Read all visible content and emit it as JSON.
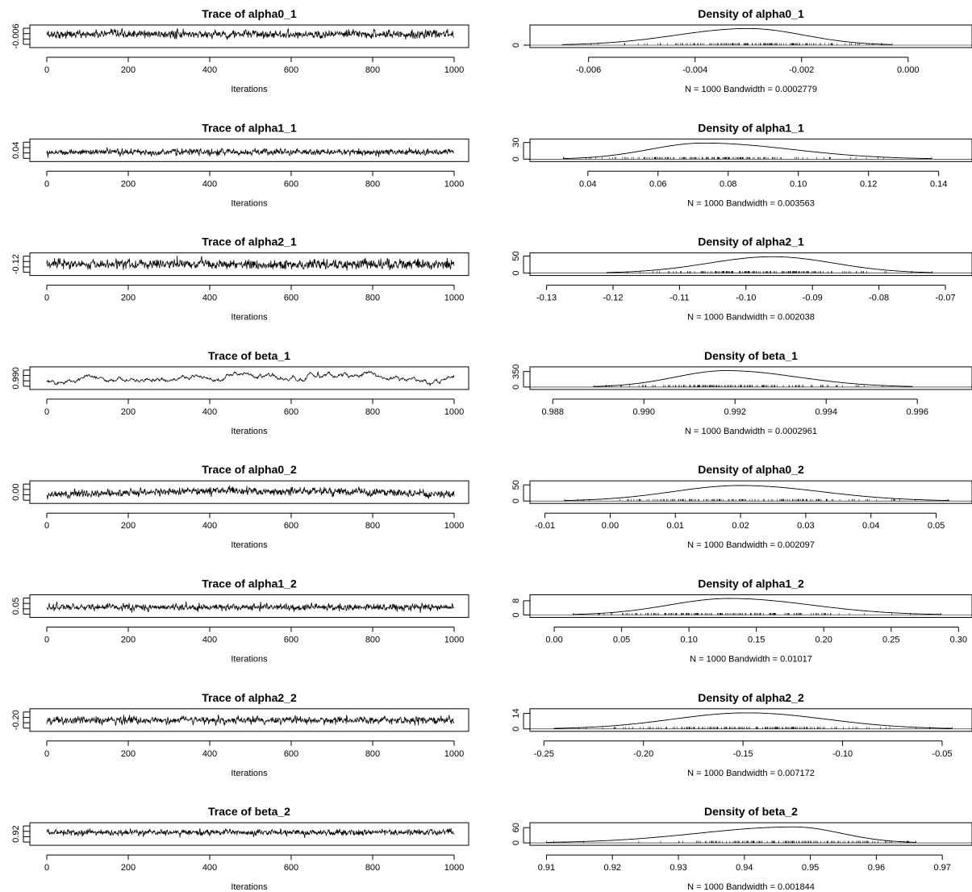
{
  "chart_data": [
    {
      "type": "line",
      "title": "Trace of alpha0_1",
      "xlabel": "Iterations",
      "xlim": [
        0,
        1000
      ],
      "x_ticks": [
        "0",
        "200",
        "400",
        "600",
        "800",
        "1000"
      ],
      "y_ticks": [
        "-0.006"
      ],
      "y_range": [
        -0.0075,
        -0.0002
      ],
      "center": -0.003,
      "spread": 0.0009,
      "drift": 0
    },
    {
      "type": "line",
      "title": "Density of alpha0_1",
      "xlabel": "N = 1000   Bandwidth = 0.0002779",
      "xlim": [
        -0.0071,
        0.0012
      ],
      "x_ticks": [
        "-0.006",
        "-0.004",
        "-0.002",
        "0.000"
      ],
      "x_tick_values": [
        -0.006,
        -0.004,
        -0.002,
        0.0
      ],
      "y_ticks": [
        "0"
      ],
      "y_range": [
        0,
        320
      ],
      "peak_x": -0.003,
      "peak_y": 300,
      "support": [
        -0.0065,
        -0.0003
      ],
      "bandwidth": 0.0002779,
      "n": 1000
    },
    {
      "type": "line",
      "title": "Trace of alpha1_1",
      "xlabel": "Iterations",
      "xlim": [
        0,
        1000
      ],
      "x_ticks": [
        "0",
        "200",
        "400",
        "600",
        "800",
        "1000"
      ],
      "y_ticks": [
        "0.04"
      ],
      "y_range": [
        0.03,
        0.15
      ],
      "center": 0.078,
      "spread": 0.011,
      "drift": 0
    },
    {
      "type": "line",
      "title": "Density of alpha1_1",
      "xlabel": "N = 1000   Bandwidth = 0.003563",
      "xlim": [
        0.0235,
        0.1495
      ],
      "x_ticks": [
        "0.04",
        "0.06",
        "0.08",
        "0.10",
        "0.12",
        "0.14"
      ],
      "x_tick_values": [
        0.04,
        0.06,
        0.08,
        0.1,
        0.12,
        0.14
      ],
      "y_ticks": [
        "0",
        "30"
      ],
      "y_range": [
        0,
        32
      ],
      "peak_x": 0.073,
      "peak_y": 29,
      "support": [
        0.033,
        0.138
      ],
      "bandwidth": 0.003563,
      "n": 1000
    },
    {
      "type": "line",
      "title": "Trace of alpha2_1",
      "xlabel": "Iterations",
      "xlim": [
        0,
        1000
      ],
      "x_ticks": [
        "0",
        "200",
        "400",
        "600",
        "800",
        "1000"
      ],
      "y_ticks": [
        "-0.12"
      ],
      "y_range": [
        -0.125,
        -0.07
      ],
      "center": -0.098,
      "spread": 0.008,
      "drift": 0
    },
    {
      "type": "line",
      "title": "Density of alpha2_1",
      "xlabel": "N = 1000   Bandwidth = 0.002038",
      "xlim": [
        -0.1325,
        -0.066
      ],
      "x_ticks": [
        "-0.13",
        "-0.12",
        "-0.11",
        "-0.10",
        "-0.09",
        "-0.08",
        "-0.07"
      ],
      "x_tick_values": [
        -0.13,
        -0.12,
        -0.11,
        -0.1,
        -0.09,
        -0.08,
        -0.07
      ],
      "y_ticks": [
        "0",
        "50"
      ],
      "y_range": [
        0,
        52
      ],
      "peak_x": -0.096,
      "peak_y": 48,
      "support": [
        -0.121,
        -0.072
      ],
      "bandwidth": 0.002038,
      "n": 1000
    },
    {
      "type": "line",
      "title": "Trace of beta_1",
      "xlabel": "Iterations",
      "xlim": [
        0,
        1000
      ],
      "x_ticks": [
        "0",
        "200",
        "400",
        "600",
        "800",
        "1000"
      ],
      "y_ticks": [
        "0.990"
      ],
      "y_range": [
        0.9888,
        0.9962
      ],
      "center": 0.9918,
      "spread": 0.0008,
      "drift": 0.0012
    },
    {
      "type": "line",
      "title": "Density of beta_1",
      "xlabel": "N = 1000   Bandwidth = 0.0002961",
      "xlim": [
        0.9875,
        0.9972
      ],
      "x_ticks": [
        "0.988",
        "0.990",
        "0.992",
        "0.994",
        "0.996"
      ],
      "x_tick_values": [
        0.988,
        0.99,
        0.992,
        0.994,
        0.996
      ],
      "y_ticks": [
        "0",
        "350"
      ],
      "y_range": [
        0,
        400
      ],
      "peak_x": 0.9918,
      "peak_y": 370,
      "support": [
        0.9889,
        0.9959
      ],
      "bandwidth": 0.0002961,
      "n": 1000
    },
    {
      "type": "line",
      "title": "Trace of alpha0_2",
      "xlabel": "Iterations",
      "xlim": [
        0,
        1000
      ],
      "x_ticks": [
        "0",
        "200",
        "400",
        "600",
        "800",
        "1000"
      ],
      "y_ticks": [
        "0.00"
      ],
      "y_range": [
        -0.008,
        0.052
      ],
      "center": 0.018,
      "spread": 0.007,
      "drift": 0.008
    },
    {
      "type": "line",
      "title": "Density of alpha0_2",
      "xlabel": "N = 1000   Bandwidth = 0.002097",
      "xlim": [
        -0.0123,
        0.0555
      ],
      "x_ticks": [
        "-0.01",
        "0.00",
        "0.01",
        "0.02",
        "0.03",
        "0.04",
        "0.05"
      ],
      "x_tick_values": [
        -0.01,
        0.0,
        0.01,
        0.02,
        0.03,
        0.04,
        0.05
      ],
      "y_ticks": [
        "0",
        "50"
      ],
      "y_range": [
        0,
        55
      ],
      "peak_x": 0.02,
      "peak_y": 48,
      "support": [
        -0.007,
        0.052
      ],
      "bandwidth": 0.002097,
      "n": 1000
    },
    {
      "type": "line",
      "title": "Trace of alpha1_2",
      "xlabel": "Iterations",
      "xlim": [
        0,
        1000
      ],
      "x_ticks": [
        "0",
        "200",
        "400",
        "600",
        "800",
        "1000"
      ],
      "y_ticks": [
        "0.05"
      ],
      "y_range": [
        0.0,
        0.3
      ],
      "center": 0.13,
      "spread": 0.03,
      "drift": 0
    },
    {
      "type": "line",
      "title": "Density of alpha1_2",
      "xlabel": "N = 1000   Bandwidth = 0.01017",
      "xlim": [
        -0.018,
        0.31
      ],
      "x_ticks": [
        "0.00",
        "0.05",
        "0.10",
        "0.15",
        "0.20",
        "0.25",
        "0.30"
      ],
      "x_tick_values": [
        0.0,
        0.05,
        0.1,
        0.15,
        0.2,
        0.25,
        0.3
      ],
      "y_ticks": [
        "0",
        "8"
      ],
      "y_range": [
        0,
        10
      ],
      "peak_x": 0.13,
      "peak_y": 9.3,
      "support": [
        0.014,
        0.287
      ],
      "bandwidth": 0.01017,
      "n": 1000
    },
    {
      "type": "line",
      "title": "Trace of alpha2_2",
      "xlabel": "Iterations",
      "xlim": [
        0,
        1000
      ],
      "x_ticks": [
        "0",
        "200",
        "400",
        "600",
        "800",
        "1000"
      ],
      "y_ticks": [
        "-0.20"
      ],
      "y_range": [
        -0.245,
        -0.05
      ],
      "center": -0.15,
      "spread": 0.022,
      "drift": 0
    },
    {
      "type": "line",
      "title": "Density of alpha2_2",
      "xlabel": "N = 1000   Bandwidth = 0.007172",
      "xlim": [
        -0.257,
        -0.035
      ],
      "x_ticks": [
        "-0.25",
        "-0.20",
        "-0.15",
        "-0.10",
        "-0.05"
      ],
      "x_tick_values": [
        -0.25,
        -0.2,
        -0.15,
        -0.1,
        -0.05
      ],
      "y_ticks": [
        "0",
        "14"
      ],
      "y_range": [
        0,
        16
      ],
      "peak_x": -0.148,
      "peak_y": 14.5,
      "support": [
        -0.245,
        -0.045
      ],
      "bandwidth": 0.007172,
      "n": 1000
    },
    {
      "type": "line",
      "title": "Trace of beta_2",
      "xlabel": "Iterations",
      "xlim": [
        0,
        1000
      ],
      "x_ticks": [
        "0",
        "200",
        "400",
        "600",
        "800",
        "1000"
      ],
      "y_ticks": [
        "0.92"
      ],
      "y_range": [
        0.905,
        0.97
      ],
      "center": 0.943,
      "spread": 0.006,
      "drift": 0
    },
    {
      "type": "line",
      "title": "Density of beta_2",
      "xlabel": "N = 1000   Bandwidth = 0.001844",
      "xlim": [
        0.9075,
        0.9745
      ],
      "x_ticks": [
        "0.91",
        "0.92",
        "0.93",
        "0.94",
        "0.95",
        "0.96",
        "0.97"
      ],
      "x_tick_values": [
        0.91,
        0.92,
        0.93,
        0.94,
        0.95,
        0.96,
        0.97
      ],
      "y_ticks": [
        "0",
        "60"
      ],
      "y_range": [
        0,
        70
      ],
      "peak_x": 0.9475,
      "peak_y": 63,
      "support": [
        0.91,
        0.966
      ],
      "bandwidth": 0.001844,
      "n": 1000
    }
  ]
}
